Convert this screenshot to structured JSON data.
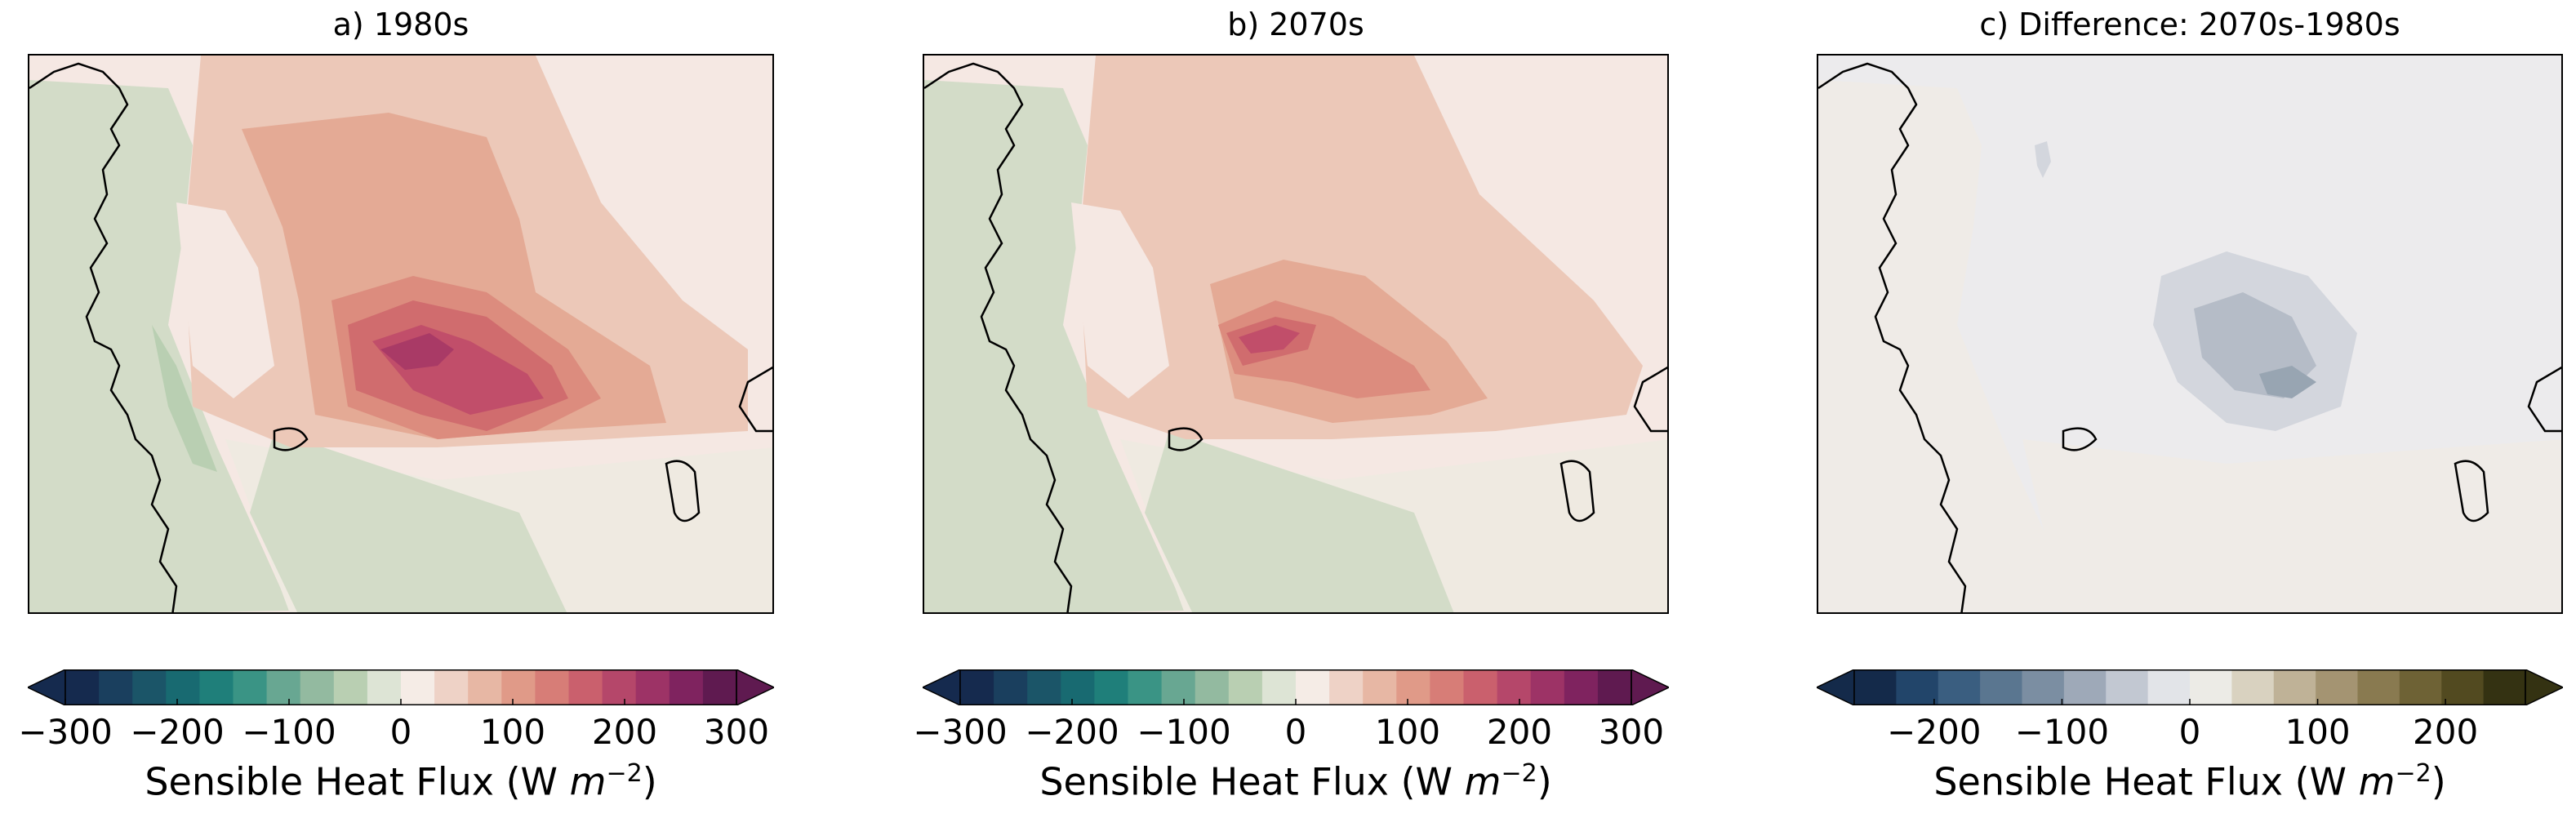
{
  "chart_data": [
    {
      "type": "heatmap",
      "title": "a) 1980s",
      "colorbar": {
        "label_prefix": "Sensible Heat Flux (W ",
        "label_unit": "m",
        "label_exp": "−2",
        "label_suffix": ")",
        "ticks": [
          "−300",
          "−200",
          "−100",
          "0",
          "100",
          "200",
          "300"
        ],
        "tick_values": [
          -300,
          -200,
          -100,
          0,
          100,
          200,
          300
        ],
        "range": [
          -300,
          300
        ],
        "extend": "both",
        "colormap": "diverging teal-green to pink-purple",
        "levels": 20
      },
      "field_levels_shown": [
        25,
        50,
        75,
        100,
        125,
        150,
        175,
        200
      ],
      "field_peak_estimate": 200,
      "land_value_estimate": -50
    },
    {
      "type": "heatmap",
      "title": "b) 2070s",
      "colorbar": {
        "label_prefix": "Sensible Heat Flux (W ",
        "label_unit": "m",
        "label_exp": "−2",
        "label_suffix": ")",
        "ticks": [
          "−300",
          "−200",
          "−100",
          "0",
          "100",
          "200",
          "300"
        ],
        "tick_values": [
          -300,
          -200,
          -100,
          0,
          100,
          200,
          300
        ],
        "range": [
          -300,
          300
        ],
        "extend": "both",
        "colormap": "diverging teal-green to pink-purple",
        "levels": 20
      },
      "field_levels_shown": [
        25,
        50,
        75,
        100,
        125,
        150
      ],
      "field_peak_estimate": 150,
      "land_value_estimate": -50
    },
    {
      "type": "heatmap",
      "title": "c) Difference: 2070s-1980s",
      "colorbar": {
        "label_prefix": "Sensible Heat Flux (W ",
        "label_unit": "m",
        "label_exp": "−2",
        "label_suffix": ")",
        "ticks": [
          "−200",
          "−100",
          "0",
          "100",
          "200"
        ],
        "tick_values": [
          -200,
          -100,
          0,
          100,
          200
        ],
        "range": [
          -262.5,
          262.5
        ],
        "extend": "both",
        "colormap": "diverging navy-grey to olive-brown",
        "levels": 14
      },
      "field_levels_shown": [
        -12.5,
        -37.5,
        -62.5
      ],
      "field_peak_estimate": -62.5
    }
  ],
  "colors": {
    "ocean_warm1": "#f5e8e3",
    "ocean_warm2": "#ecc8b8",
    "ocean_warm3": "#e4aa95",
    "ocean_warm4": "#dc8c7e",
    "ocean_warm5": "#d06c6e",
    "ocean_warm6": "#c14e6a",
    "land_green": "#d3dcc8",
    "land_green_dark": "#b9cfb2",
    "neutral": "#efeae1",
    "diff_neutral": "#ecebed",
    "diff_grey1": "#d3d6dd",
    "diff_grey2": "#b5bcc7",
    "diff_grey3": "#98a5b2",
    "diff_land": "#efebe7",
    "coast": "#000000"
  }
}
